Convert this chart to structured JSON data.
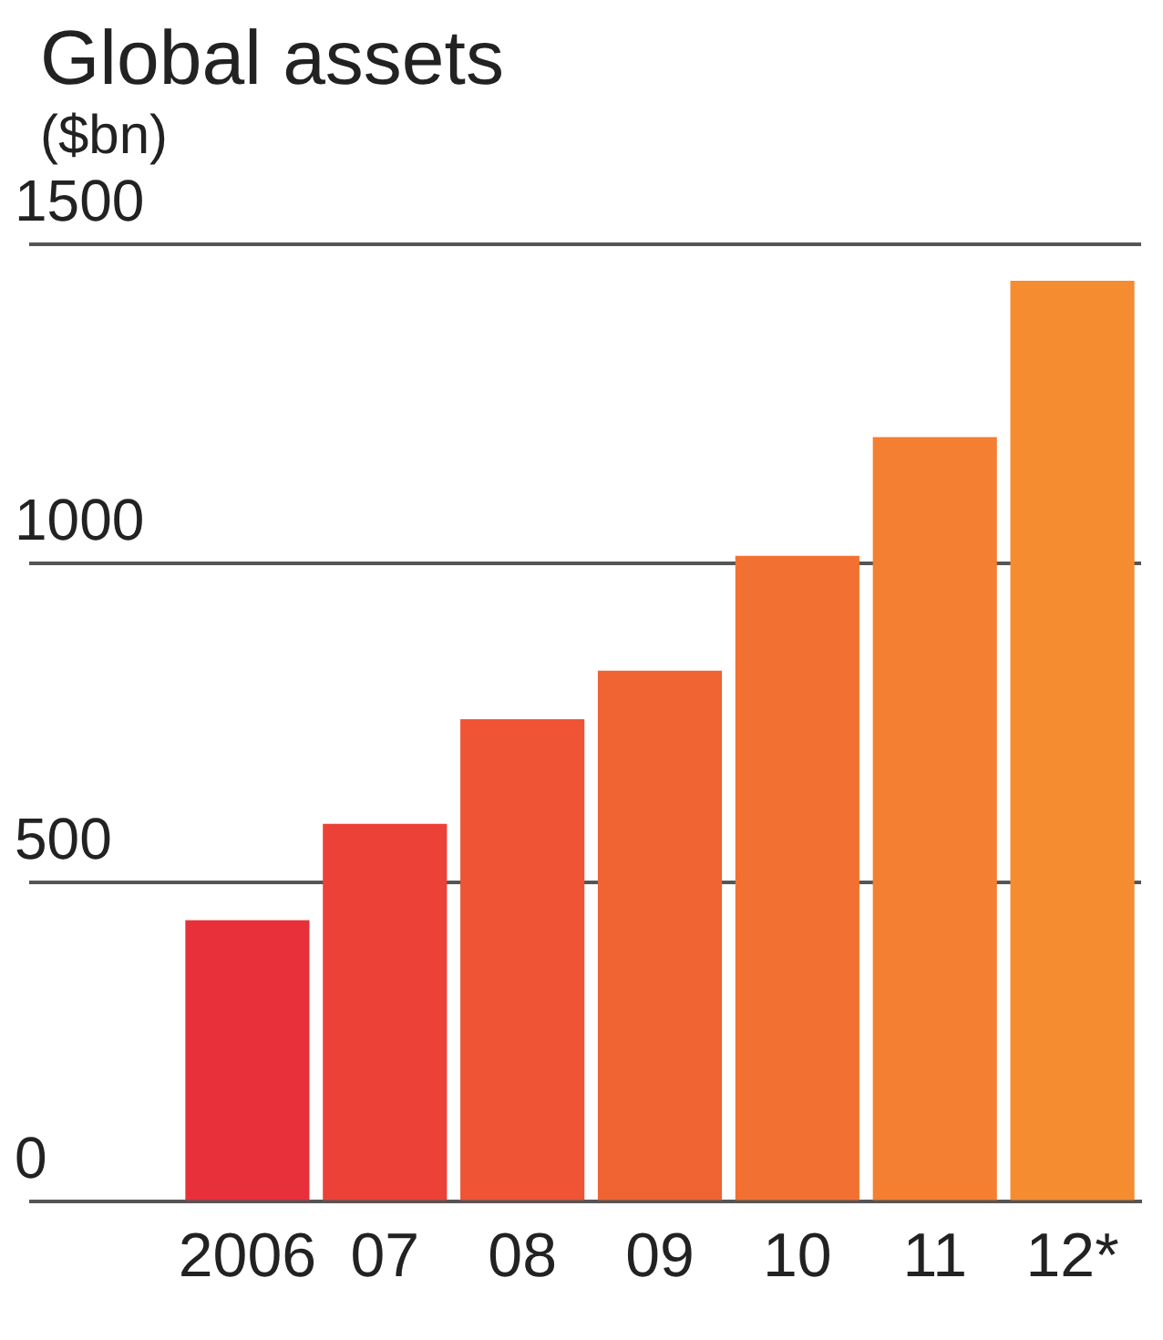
{
  "chart_data": {
    "type": "bar",
    "title": "Global assets",
    "subtitle": "($bn)",
    "categories": [
      "2006",
      "07",
      "08",
      "09",
      "10",
      "11",
      "12*"
    ],
    "values": [
      441,
      592,
      756,
      832,
      1012,
      1198,
      1443
    ],
    "colors": [
      "#e8303a",
      "#ec4137",
      "#ef5434",
      "#f06333",
      "#f27132",
      "#f47e31",
      "#f58c30"
    ],
    "ylim": [
      0,
      1500
    ],
    "yticks": [
      0,
      500,
      1000,
      1500
    ],
    "grid": "y"
  }
}
